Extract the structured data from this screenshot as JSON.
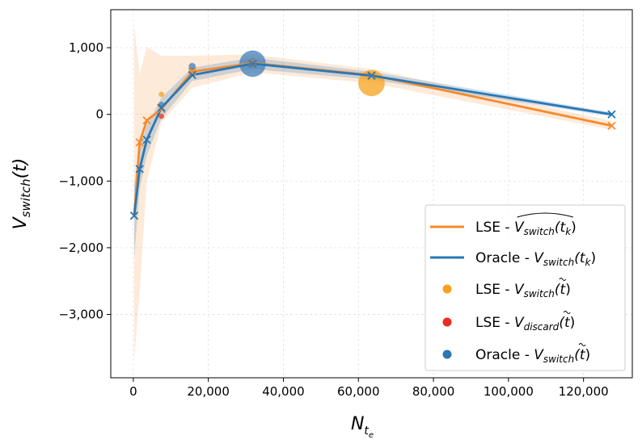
{
  "chart_data": {
    "type": "line",
    "xlabel_main": "N",
    "xlabel_sub": "t",
    "xlabel_subsub": "e",
    "ylabel_main": "V",
    "ylabel_sub": "switch",
    "ylabel_arg": "(t)",
    "xlim": [
      -6000,
      133000
    ],
    "ylim": [
      -3950,
      1570
    ],
    "x_ticks": [
      0,
      20000,
      40000,
      60000,
      80000,
      100000,
      120000
    ],
    "x_tick_labels": [
      "0",
      "20,000",
      "40,000",
      "60,000",
      "80,000",
      "100,000",
      "120,000"
    ],
    "y_ticks": [
      1000,
      0,
      -1000,
      -2000,
      -3000
    ],
    "y_tick_labels": [
      "1,000",
      "0",
      "−1,000",
      "−2,000",
      "−3,000"
    ],
    "grid": true,
    "legend_position": "lower-right",
    "series": [
      {
        "key": "lse",
        "color": "#f58a2e",
        "x": [
          250,
          1700,
          3600,
          7500,
          15700,
          31800,
          63500,
          127500
        ],
        "y": [
          -1520,
          -420,
          -90,
          80,
          640,
          770,
          590,
          -170
        ],
        "band_lower": [
          -3680,
          -2650,
          -1000,
          -120,
          400,
          630,
          470,
          -230
        ],
        "band_upper": [
          1320,
          600,
          1010,
          880,
          880,
          900,
          680,
          -100
        ]
      },
      {
        "key": "oracle",
        "color": "#2a77b4",
        "x": [
          250,
          1700,
          3600,
          7500,
          15700,
          31800,
          63500,
          127500
        ],
        "y": [
          -1520,
          -820,
          -380,
          100,
          590,
          760,
          580,
          0
        ],
        "band_lower": [
          -2150,
          -1120,
          -620,
          -60,
          500,
          680,
          520,
          -30
        ],
        "band_upper": [
          -1050,
          -500,
          -170,
          250,
          700,
          850,
          640,
          30
        ]
      }
    ],
    "scatter": [
      {
        "key": "lse_switch",
        "color": "#f7a21b",
        "points": [
          {
            "x": 7500,
            "y": 300,
            "r": 3
          },
          {
            "x": 15700,
            "y": 650,
            "r": 4
          },
          {
            "x": 63500,
            "y": 470,
            "r": 16
          },
          {
            "x": 31800,
            "y": 770,
            "r": 6
          }
        ]
      },
      {
        "key": "lse_discard",
        "color": "#ee3328",
        "points": [
          {
            "x": 7500,
            "y": -30,
            "r": 3
          }
        ]
      },
      {
        "key": "oracle_switch",
        "color": "#3f7fb8",
        "points": [
          {
            "x": 7500,
            "y": 150,
            "r": 3
          },
          {
            "x": 15700,
            "y": 720,
            "r": 4
          },
          {
            "x": 31800,
            "y": 760,
            "r": 16
          }
        ]
      }
    ],
    "legend": [
      {
        "key": "lse",
        "kind": "line",
        "color": "#f58a2e",
        "prefix": "LSE - ",
        "main": "V",
        "sub": "switch",
        "arg": "(t",
        "argsub": "k",
        "argclose": ")",
        "hat": true,
        "tilde": false
      },
      {
        "key": "oracle",
        "kind": "line",
        "color": "#2a77b4",
        "prefix": "Oracle - ",
        "main": "V",
        "sub": "switch",
        "arg": "(t",
        "argsub": "k",
        "argclose": ")",
        "hat": false,
        "tilde": false
      },
      {
        "key": "lse_switch",
        "kind": "dot",
        "color": "#f7a21b",
        "prefix": "LSE - ",
        "main": "V",
        "sub": "switch",
        "arg": "(t",
        "argsub": "",
        "argclose": ")",
        "hat": false,
        "tilde": true
      },
      {
        "key": "lse_discard",
        "kind": "dot",
        "color": "#ee2a1f",
        "prefix": "LSE - ",
        "main": "V",
        "sub": "discard",
        "arg": "(t",
        "argsub": "",
        "argclose": ")",
        "hat": false,
        "tilde": true
      },
      {
        "key": "oracle_switch",
        "kind": "dot",
        "color": "#2a77b4",
        "prefix": "Oracle - ",
        "main": "V",
        "sub": "switch",
        "arg": "(t",
        "argsub": "",
        "argclose": ")",
        "hat": false,
        "tilde": true
      }
    ]
  }
}
